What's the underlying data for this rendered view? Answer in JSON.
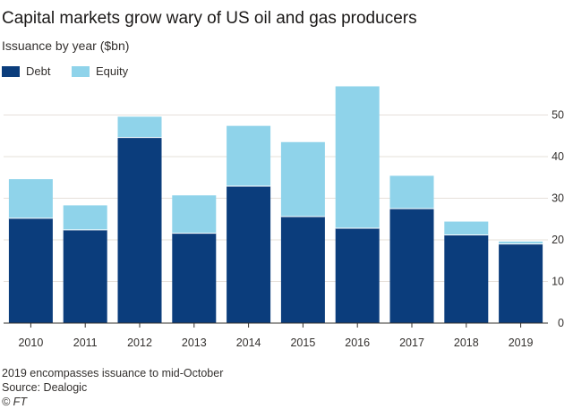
{
  "title": "Capital markets grow wary of US oil and gas producers",
  "subtitle": "Issuance by year ($bn)",
  "legend": [
    {
      "label": "Debt",
      "color": "#0b3d7c"
    },
    {
      "label": "Equity",
      "color": "#8fd3ea"
    }
  ],
  "footer": {
    "note": "2019 encompasses issuance to mid-October",
    "source": "Source: Dealogic",
    "credit": "© FT"
  },
  "chart_data": {
    "type": "bar",
    "stacked": true,
    "title": "Capital markets grow wary of US oil and gas producers",
    "ylabel": "Issuance by year ($bn)",
    "xlabel": "",
    "categories": [
      "2010",
      "2011",
      "2012",
      "2013",
      "2014",
      "2015",
      "2016",
      "2017",
      "2018",
      "2019"
    ],
    "series": [
      {
        "name": "Debt",
        "color": "#0b3d7c",
        "values": [
          25.2,
          22.4,
          44.6,
          21.6,
          32.9,
          25.6,
          22.8,
          27.5,
          21.2,
          19.0
        ]
      },
      {
        "name": "Equity",
        "color": "#8fd3ea",
        "values": [
          9.4,
          5.9,
          5.0,
          9.1,
          14.5,
          17.9,
          34.1,
          7.9,
          3.2,
          0.6
        ]
      }
    ],
    "ylim": [
      0,
      57
    ],
    "yticks": [
      0,
      10,
      20,
      30,
      40,
      50
    ],
    "y_axis_side": "right",
    "grid": true,
    "legend_position": "top-left"
  }
}
